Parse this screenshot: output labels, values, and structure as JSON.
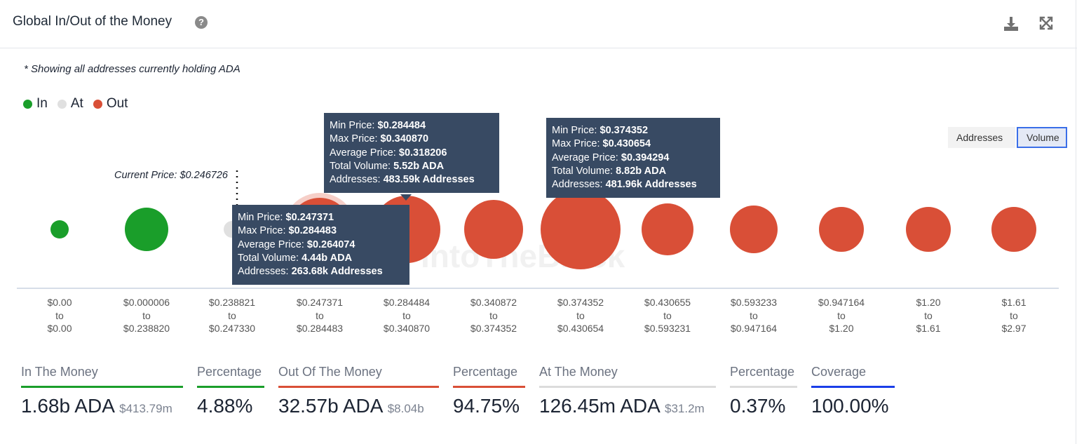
{
  "header": {
    "title": "Global In/Out of the Money",
    "help_icon": "question-circle-icon",
    "download_icon": "download-icon",
    "fullscreen_icon": "expand-icon"
  },
  "note": "* Showing all addresses currently holding ADA",
  "legend": [
    {
      "label": "In",
      "color": "#1a9e2a"
    },
    {
      "label": "At",
      "color": "#e0e0e0"
    },
    {
      "label": "Out",
      "color": "#d94f37"
    }
  ],
  "toggle": {
    "addresses": "Addresses",
    "volume": "Volume",
    "selected": "Volume"
  },
  "current_price": "Current Price: $0.246726",
  "watermark": "IntoTheBlock",
  "chart_data": {
    "type": "bubble",
    "buckets": [
      {
        "from": "$0.00",
        "to": "$0.00",
        "status": "In"
      },
      {
        "from": "$0.000006",
        "to": "$0.238820",
        "status": "In"
      },
      {
        "from": "$0.238821",
        "to": "$0.247330",
        "status": "At"
      },
      {
        "from": "$0.247371",
        "to": "$0.284483",
        "status": "Out"
      },
      {
        "from": "$0.284484",
        "to": "$0.340870",
        "status": "Out"
      },
      {
        "from": "$0.340872",
        "to": "$0.374352",
        "status": "Out"
      },
      {
        "from": "$0.374352",
        "to": "$0.430654",
        "status": "Out"
      },
      {
        "from": "$0.430655",
        "to": "$0.593231",
        "status": "Out"
      },
      {
        "from": "$0.593233",
        "to": "$0.947164",
        "status": "Out"
      },
      {
        "from": "$0.947164",
        "to": "$1.20",
        "status": "Out"
      },
      {
        "from": "$1.20",
        "to": "$1.61",
        "status": "Out"
      },
      {
        "from": "$1.61",
        "to": "$2.97",
        "status": "Out"
      }
    ],
    "to_word": "to"
  },
  "tooltips": [
    {
      "lines": [
        [
          "Min Price: ",
          "$0.284484"
        ],
        [
          "Max Price: ",
          "$0.340870"
        ],
        [
          "Average Price: ",
          "$0.318206"
        ],
        [
          "Total Volume: ",
          "5.52b ADA"
        ],
        [
          "Addresses: ",
          "483.59k Addresses"
        ]
      ]
    },
    {
      "lines": [
        [
          "Min Price: ",
          "$0.374352"
        ],
        [
          "Max Price: ",
          "$0.430654"
        ],
        [
          "Average Price: ",
          "$0.394294"
        ],
        [
          "Total Volume: ",
          "8.82b ADA"
        ],
        [
          "Addresses: ",
          "481.96k Addresses"
        ]
      ]
    },
    {
      "lines": [
        [
          "Min Price: ",
          "$0.247371"
        ],
        [
          "Max Price: ",
          "$0.284483"
        ],
        [
          "Average Price: ",
          "$0.264074"
        ],
        [
          "Total Volume: ",
          "4.44b ADA"
        ],
        [
          "Addresses: ",
          "263.68k Addresses"
        ]
      ]
    }
  ],
  "stats": [
    {
      "label": "In The Money",
      "value": "1.68b ADA",
      "sub": "$413.79m",
      "color": "#1a9e2a"
    },
    {
      "label": "Percentage",
      "value": "4.88%",
      "sub": "",
      "color": "#1a9e2a"
    },
    {
      "label": "Out Of The Money",
      "value": "32.57b ADA",
      "sub": "$8.04b",
      "color": "#d94f37"
    },
    {
      "label": "Percentage",
      "value": "94.75%",
      "sub": "",
      "color": "#d94f37"
    },
    {
      "label": "At The Money",
      "value": "126.45m ADA",
      "sub": "$31.2m",
      "color": "#dcdcdc"
    },
    {
      "label": "Percentage",
      "value": "0.37%",
      "sub": "",
      "color": "#dcdcdc"
    },
    {
      "label": "Coverage",
      "value": "100.00%",
      "sub": "",
      "color": "#1a3ee8"
    }
  ]
}
